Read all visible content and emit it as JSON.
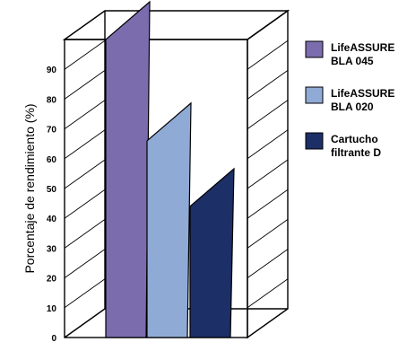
{
  "chart_data": {
    "type": "bar",
    "categories": [
      "LifeASSURE BLA 045",
      "LifeASSURE BLA 020",
      "Cartucho filtrante D"
    ],
    "values": [
      100,
      66,
      44
    ],
    "ylabel": "Porcentaje de rendimiento (%)",
    "ylim": [
      0,
      100
    ],
    "yticks": [
      0,
      10,
      20,
      30,
      40,
      50,
      60,
      70,
      80,
      90
    ],
    "grid": true,
    "legend_position": "right",
    "series": [
      {
        "name": "LifeASSURE BLA 045",
        "legend_lines": [
          "LifeASSURE",
          "BLA 045"
        ],
        "value": 100,
        "color": "#7B6CAE"
      },
      {
        "name": "LifeASSURE BLA 020",
        "legend_lines": [
          "LifeASSURE",
          "BLA 020"
        ],
        "value": 66,
        "color": "#90AAD6"
      },
      {
        "name": "Cartucho filtrante D",
        "legend_lines": [
          "Cartucho",
          "filtrante D"
        ],
        "value": 44,
        "color": "#1C2F66"
      }
    ]
  }
}
